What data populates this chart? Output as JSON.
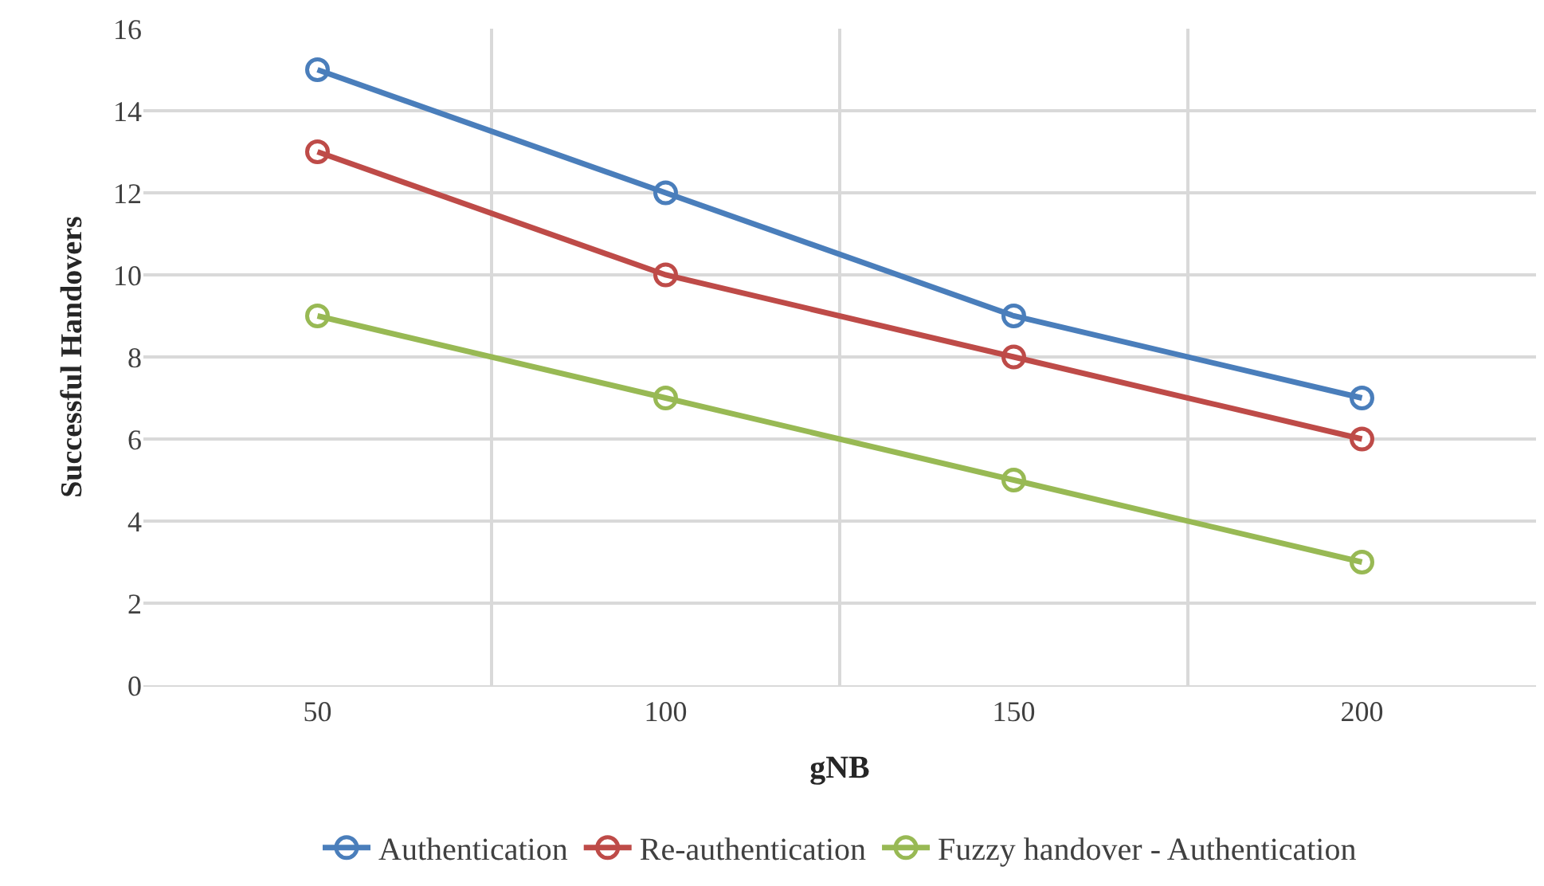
{
  "chart_data": {
    "type": "line",
    "xlabel": "gNB",
    "ylabel": "Successful Handovers",
    "categories": [
      "50",
      "100",
      "150",
      "200"
    ],
    "series": [
      {
        "name": "Authentication",
        "color": "#4a7ebb",
        "values": [
          15,
          12,
          9,
          7
        ]
      },
      {
        "name": "Re-authentication",
        "color": "#be4b48",
        "values": [
          13,
          10,
          8,
          6
        ]
      },
      {
        "name": "Fuzzy handover - Authentication",
        "color": "#98b954",
        "values": [
          9,
          7,
          5,
          3
        ]
      }
    ],
    "ylim": [
      0,
      16
    ],
    "yticks": [
      0,
      2,
      4,
      6,
      8,
      10,
      12,
      14,
      16
    ],
    "grid": true,
    "legend": "bottom",
    "marker": "circle",
    "line_style": "solid"
  }
}
